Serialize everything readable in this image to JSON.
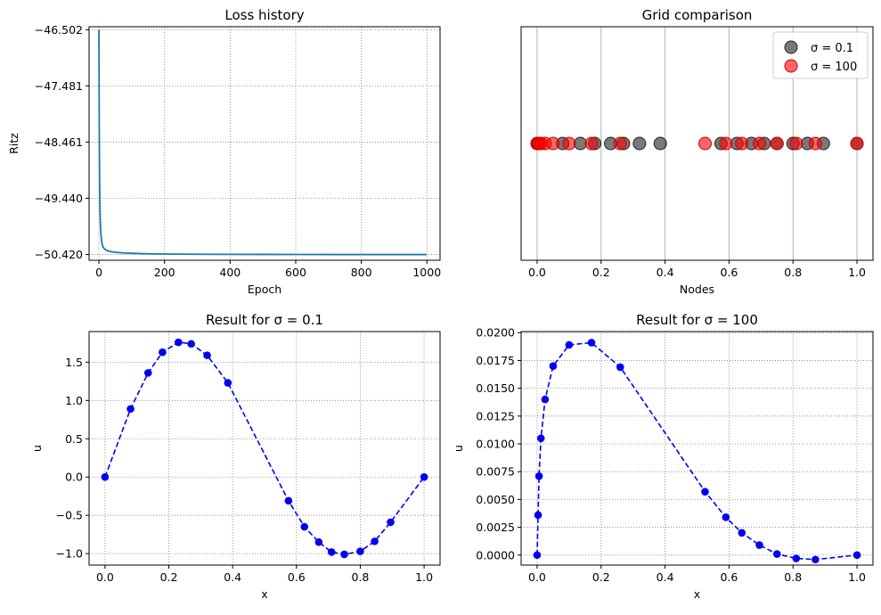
{
  "colors": {
    "loss_line": "#1f77b4",
    "sigma_small": "#404040",
    "sigma_large": "#ff0000",
    "result_line": "#0000ee",
    "grid_dotted": "#808080",
    "grid_solid": "#b0b0b0"
  },
  "chart_data": [
    {
      "id": "loss",
      "type": "line",
      "title": "Loss history",
      "xlabel": "Epoch",
      "ylabel": "Ritz",
      "xlim": [
        -30,
        1040
      ],
      "ylim": [
        -50.52,
        -46.45
      ],
      "xticks": [
        0,
        200,
        400,
        600,
        800,
        1000
      ],
      "xtick_labels": [
        "0",
        "200",
        "400",
        "600",
        "800",
        "1000"
      ],
      "yticks": [
        -46.502,
        -47.481,
        -48.461,
        -49.44,
        -50.42
      ],
      "ytick_labels": [
        "−46.502",
        "−47.481",
        "−48.461",
        "−49.440",
        "−50.420"
      ],
      "grid": true,
      "x": [
        0,
        1,
        2,
        3,
        4,
        5,
        6,
        8,
        10,
        12,
        15,
        20,
        25,
        30,
        40,
        50,
        60,
        80,
        100,
        150,
        200,
        300,
        400,
        500,
        600,
        800,
        1000
      ],
      "y": [
        -46.502,
        -48.2,
        -49.1,
        -49.55,
        -49.8,
        -49.95,
        -50.05,
        -50.17,
        -50.24,
        -50.28,
        -50.31,
        -50.335,
        -50.35,
        -50.36,
        -50.372,
        -50.38,
        -50.386,
        -50.394,
        -50.399,
        -50.407,
        -50.411,
        -50.415,
        -50.417,
        -50.418,
        -50.419,
        -50.42,
        -50.42
      ]
    },
    {
      "id": "grid",
      "type": "scatter",
      "title": "Grid comparison",
      "xlabel": "Nodes",
      "ylabel": "",
      "xlim": [
        -0.05,
        1.05
      ],
      "xticks": [
        0,
        0.2,
        0.4,
        0.6,
        0.8,
        1.0
      ],
      "xtick_labels": [
        "0.0",
        "0.2",
        "0.4",
        "0.6",
        "0.8",
        "1.0"
      ],
      "grid": "vertical",
      "legend": "top-right",
      "series": [
        {
          "name": "σ = 0.1",
          "x": [
            0,
            0.08,
            0.135,
            0.18,
            0.23,
            0.27,
            0.32,
            0.385,
            0.575,
            0.625,
            0.67,
            0.71,
            0.75,
            0.8,
            0.845,
            0.895,
            1.0
          ]
        },
        {
          "name": "σ = 100",
          "x": [
            0,
            0.003,
            0.006,
            0.012,
            0.025,
            0.05,
            0.1,
            0.17,
            0.26,
            0.525,
            0.59,
            0.64,
            0.695,
            0.75,
            0.81,
            0.87,
            1.0
          ]
        }
      ]
    },
    {
      "id": "res1",
      "type": "line",
      "title": "Result for σ = 0.1",
      "xlabel": "x",
      "ylabel": "u",
      "xlim": [
        -0.05,
        1.05
      ],
      "ylim": [
        -1.15,
        1.9
      ],
      "xticks": [
        0,
        0.2,
        0.4,
        0.6,
        0.8,
        1.0
      ],
      "xtick_labels": [
        "0.0",
        "0.2",
        "0.4",
        "0.6",
        "0.8",
        "1.0"
      ],
      "yticks": [
        -1.0,
        -0.5,
        0.0,
        0.5,
        1.0,
        1.5
      ],
      "ytick_labels": [
        "−1.0",
        "−0.5",
        "0.0",
        "0.5",
        "1.0",
        "1.5"
      ],
      "grid": true,
      "x": [
        0,
        0.08,
        0.135,
        0.18,
        0.23,
        0.27,
        0.32,
        0.385,
        0.575,
        0.625,
        0.67,
        0.71,
        0.75,
        0.8,
        0.845,
        0.895,
        1.0
      ],
      "y": [
        0,
        0.89,
        1.36,
        1.63,
        1.76,
        1.74,
        1.59,
        1.23,
        -0.31,
        -0.65,
        -0.85,
        -0.98,
        -1.01,
        -0.97,
        -0.84,
        -0.59,
        0
      ]
    },
    {
      "id": "res2",
      "type": "line",
      "title": "Result for σ = 100",
      "xlabel": "x",
      "ylabel": "u",
      "xlim": [
        -0.05,
        1.05
      ],
      "ylim": [
        -0.0009,
        0.0201
      ],
      "xticks": [
        0,
        0.2,
        0.4,
        0.6,
        0.8,
        1.0
      ],
      "xtick_labels": [
        "0.0",
        "0.2",
        "0.4",
        "0.6",
        "0.8",
        "1.0"
      ],
      "yticks": [
        0,
        0.0025,
        0.005,
        0.0075,
        0.01,
        0.0125,
        0.015,
        0.0175,
        0.02
      ],
      "ytick_labels": [
        "0.0000",
        "0.0025",
        "0.0050",
        "0.0075",
        "0.0100",
        "0.0125",
        "0.0150",
        "0.0175",
        "0.0200"
      ],
      "grid": true,
      "x": [
        0,
        0.003,
        0.006,
        0.012,
        0.025,
        0.05,
        0.1,
        0.17,
        0.26,
        0.525,
        0.59,
        0.64,
        0.695,
        0.75,
        0.81,
        0.87,
        1.0
      ],
      "y": [
        0,
        0.0036,
        0.0071,
        0.0105,
        0.014,
        0.017,
        0.0189,
        0.0191,
        0.0169,
        0.0057,
        0.0034,
        0.002,
        0.0009,
        0.0001,
        -0.0003,
        -0.0004,
        0
      ]
    }
  ]
}
